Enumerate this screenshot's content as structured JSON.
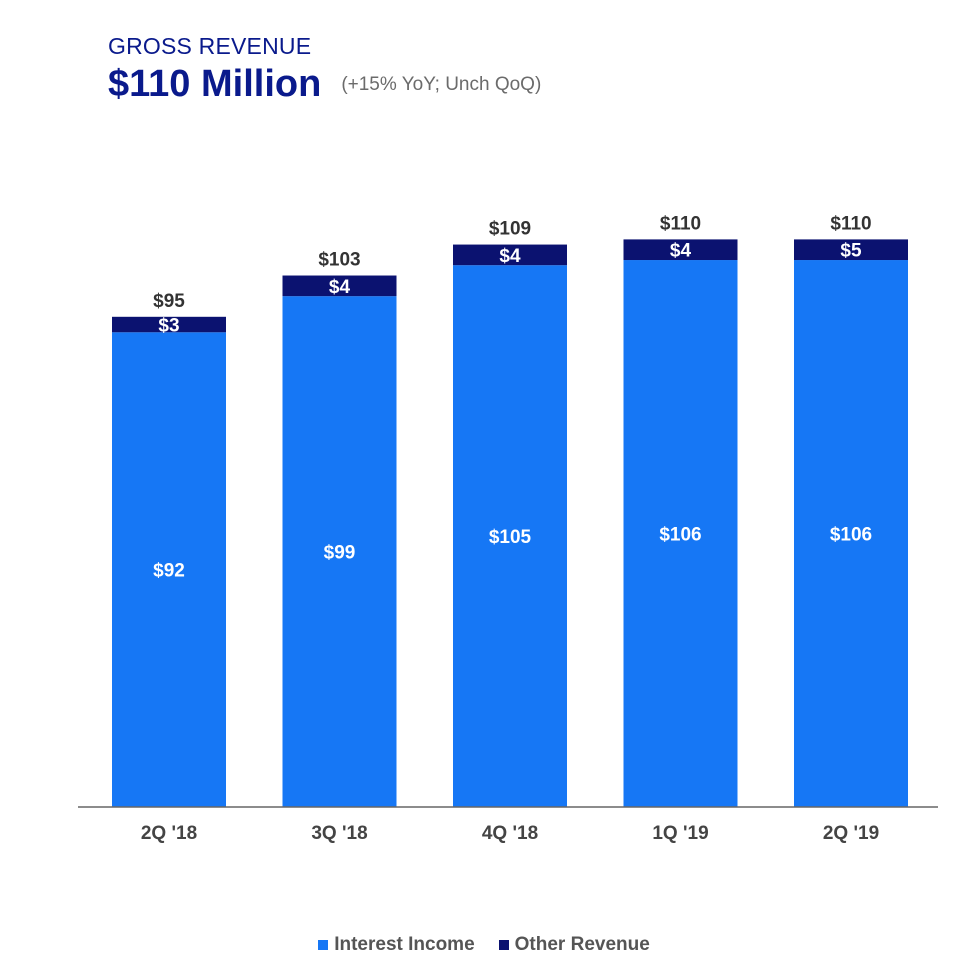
{
  "header": {
    "kicker": "GROSS REVENUE",
    "headline": "$110 Million",
    "change_note": "(+15% YoY; Unch QoQ)"
  },
  "colors": {
    "interest_income": "#1677f5",
    "other_revenue": "#0b1270",
    "axis": "#666666",
    "total_label": "#333333",
    "tick_label": "#444444",
    "segment_label": "#ffffff"
  },
  "chart_data": {
    "type": "bar",
    "stacked": true,
    "categories": [
      "2Q '18",
      "3Q '18",
      "4Q '18",
      "1Q '19",
      "2Q '19"
    ],
    "series": [
      {
        "name": "Interest Income",
        "values": [
          92,
          99,
          105,
          106,
          106
        ],
        "labels": [
          "$92",
          "$99",
          "$105",
          "$106",
          "$106"
        ]
      },
      {
        "name": "Other Revenue",
        "values": [
          3,
          4,
          4,
          4,
          5
        ],
        "labels": [
          "$3",
          "$4",
          "$4",
          "$4",
          "$5"
        ]
      }
    ],
    "totals": [
      95,
      103,
      109,
      110,
      110
    ],
    "total_labels": [
      "$95",
      "$103",
      "$109",
      "$110",
      "$110"
    ],
    "title": "",
    "xlabel": "",
    "ylabel": "",
    "ylim": [
      0,
      110
    ],
    "grid": false,
    "legend_position": "bottom"
  },
  "legend": {
    "items": [
      "Interest Income",
      "Other Revenue"
    ]
  }
}
